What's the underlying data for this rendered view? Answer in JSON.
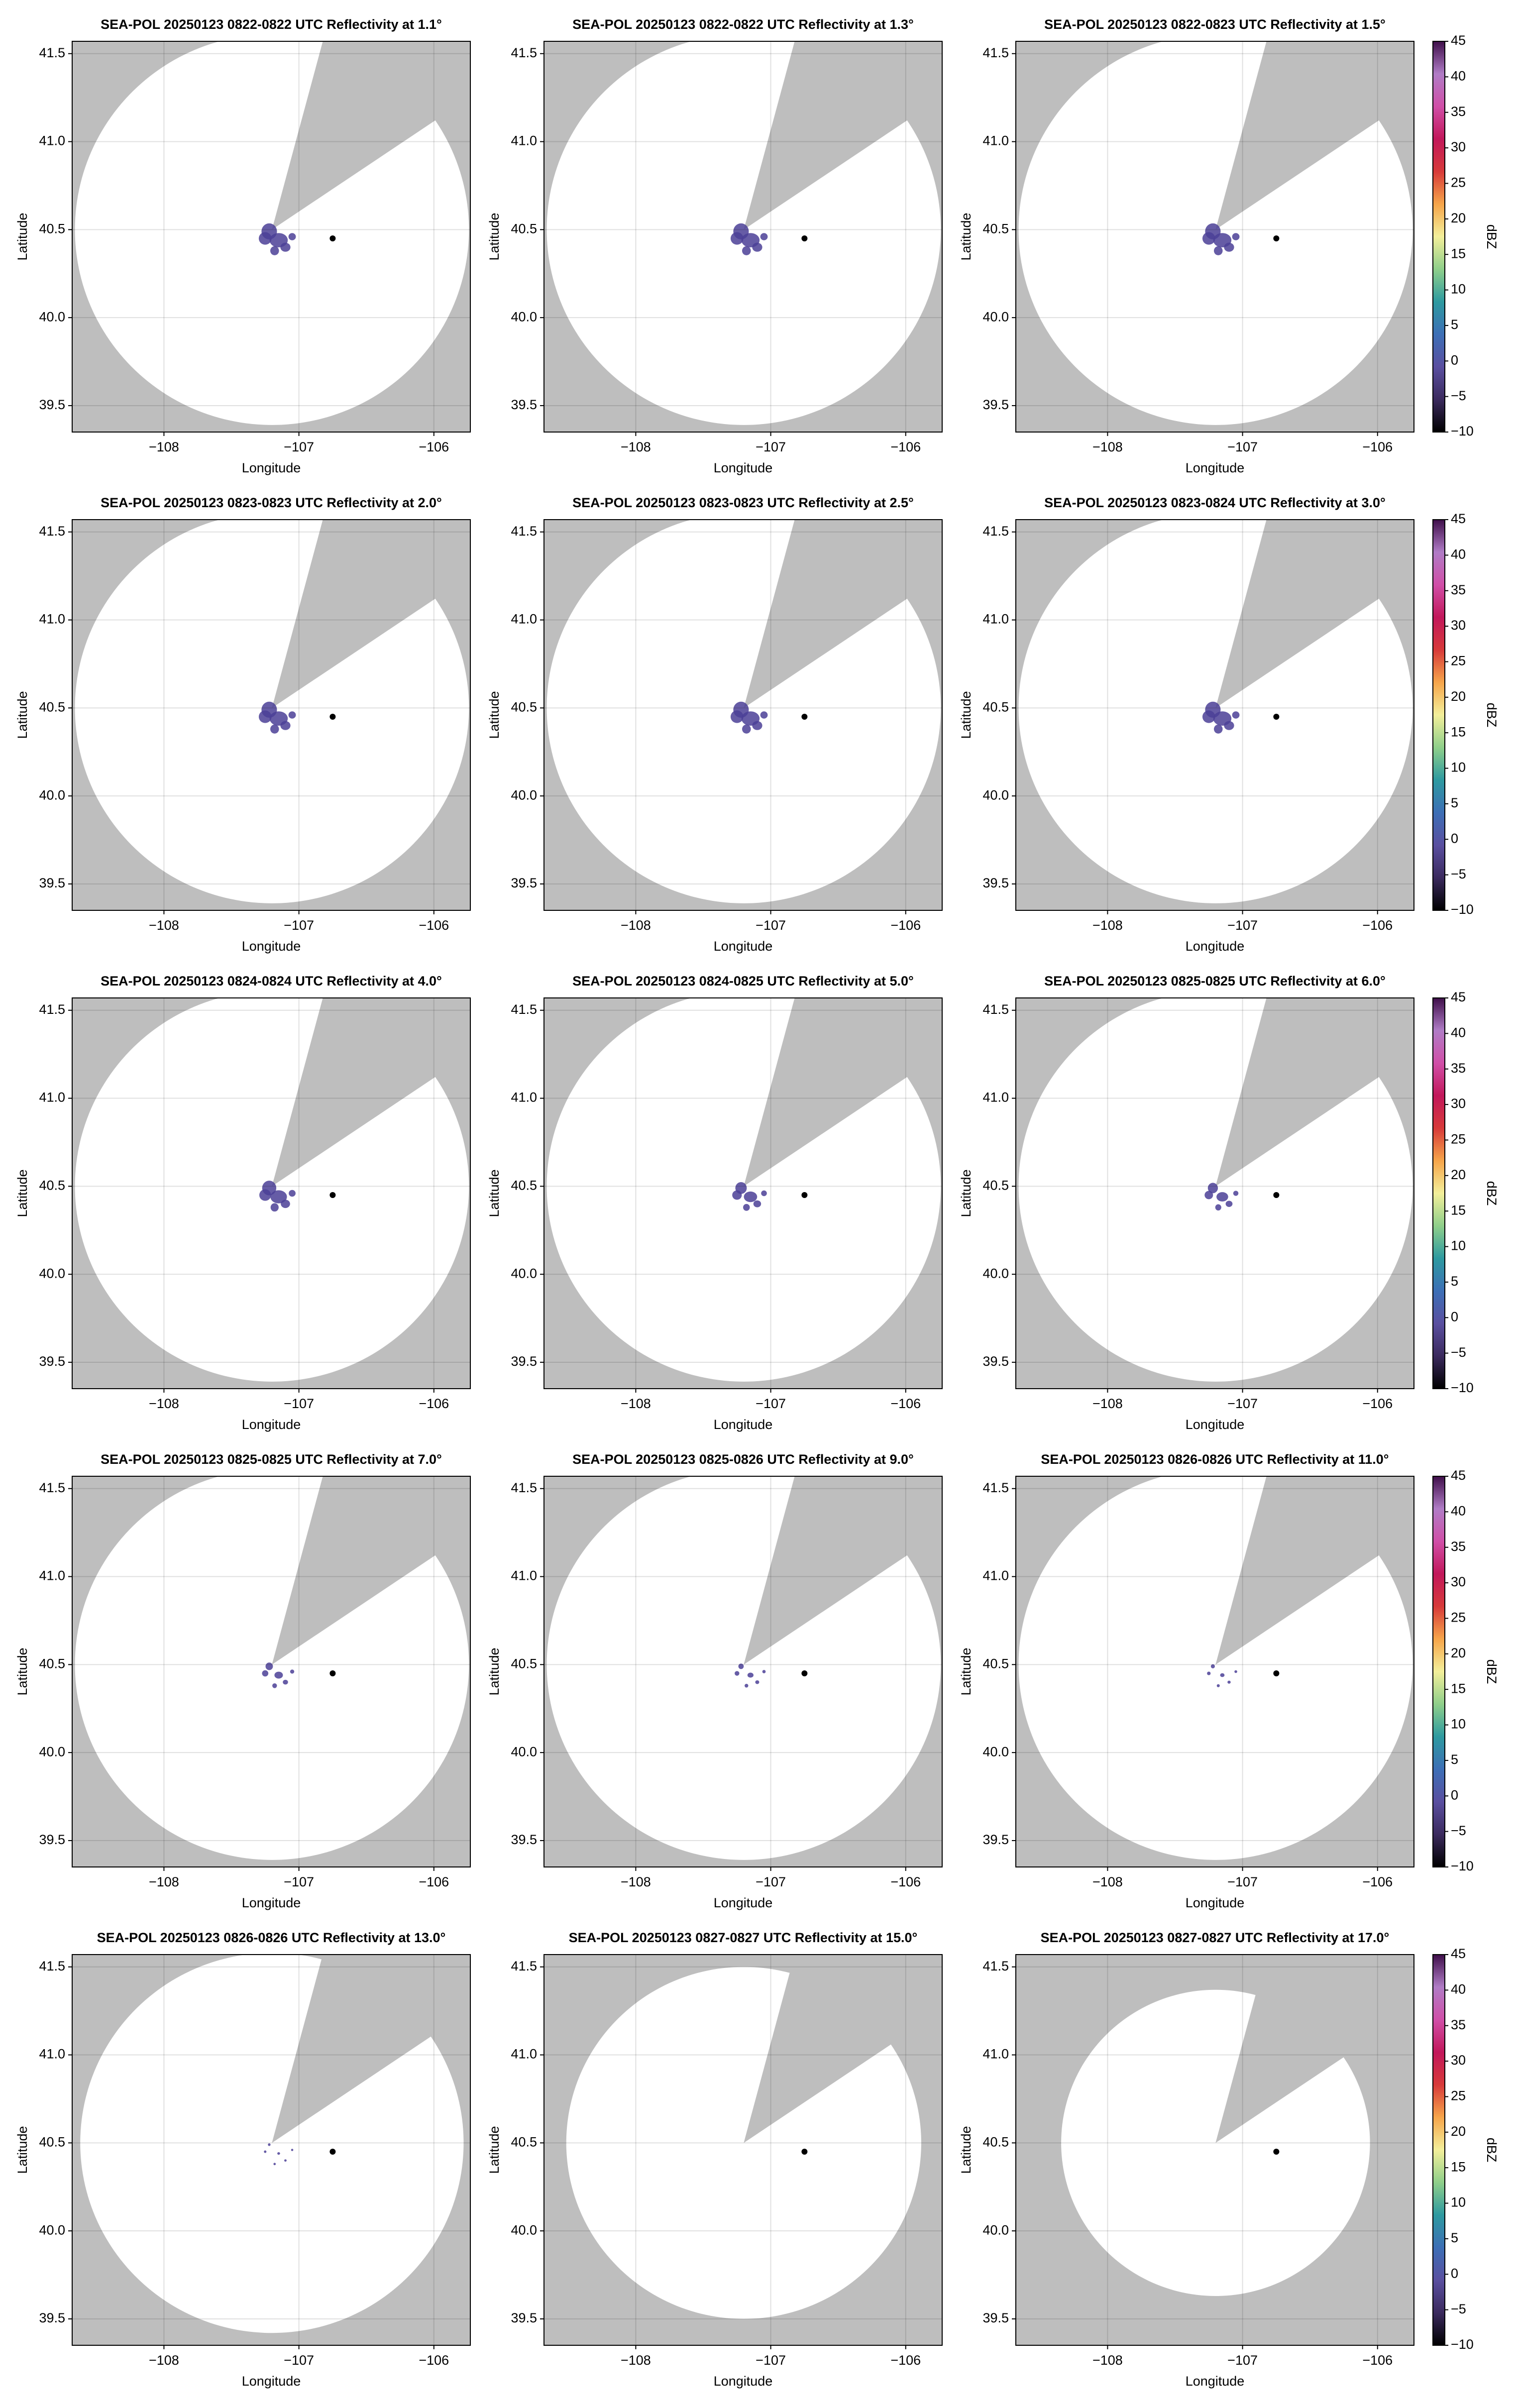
{
  "chart_data": [
    {
      "type": "map",
      "title": "SEA-POL 20250123 0822-0822 UTC Reflectivity at 1.1°",
      "xlabel": "Longitude",
      "ylabel": "Latitude",
      "xlim": [
        -108.68,
        -105.73
      ],
      "ylim": [
        39.35,
        41.57
      ],
      "xticks": [
        {
          "value": -108,
          "label": "−108"
        },
        {
          "value": -107,
          "label": "−107"
        },
        {
          "value": -106,
          "label": "−106"
        }
      ],
      "yticks": [
        39.5,
        {
          "value": 40,
          "label": "40.0"
        },
        40.5,
        {
          "value": 41,
          "label": "41.0"
        },
        41.5
      ],
      "grid": true,
      "background": "#bebebe",
      "x": [
        -106.75
      ],
      "y": [
        40.45
      ]
    },
    {
      "type": "map",
      "title": "SEA-POL 20250123 0822-0822 UTC Reflectivity at 1.3°",
      "xlabel": "Longitude",
      "ylabel": "Latitude",
      "xlim": [
        -108.68,
        -105.73
      ],
      "ylim": [
        39.35,
        41.57
      ],
      "xticks": [
        {
          "value": -108,
          "label": "−108"
        },
        {
          "value": -107,
          "label": "−107"
        },
        {
          "value": -106,
          "label": "−106"
        }
      ],
      "yticks": [
        39.5,
        {
          "value": 40,
          "label": "40.0"
        },
        40.5,
        {
          "value": 41,
          "label": "41.0"
        },
        41.5
      ],
      "grid": true,
      "background": "#bebebe",
      "x": [
        -106.75
      ],
      "y": [
        40.45
      ]
    },
    {
      "type": "map",
      "title": "SEA-POL 20250123 0822-0823 UTC Reflectivity at 1.5°",
      "xlabel": "Longitude",
      "ylabel": "Latitude",
      "xlim": [
        -108.68,
        -105.73
      ],
      "ylim": [
        39.35,
        41.57
      ],
      "xticks": [
        {
          "value": -108,
          "label": "−108"
        },
        {
          "value": -107,
          "label": "−107"
        },
        {
          "value": -106,
          "label": "−106"
        }
      ],
      "yticks": [
        39.5,
        {
          "value": 40,
          "label": "40.0"
        },
        40.5,
        {
          "value": 41,
          "label": "41.0"
        },
        41.5
      ],
      "grid": true,
      "background": "#bebebe",
      "x": [
        -106.75
      ],
      "y": [
        40.45
      ],
      "colorbar": {
        "label": "dBZ",
        "lim": [
          -10,
          45
        ],
        "ticks": [
          {
            "value": -10,
            "label": "−10"
          },
          {
            "value": -5,
            "label": "−5"
          },
          0,
          5,
          10,
          15,
          20,
          25,
          30,
          35,
          40,
          45
        ],
        "colors": [
          "#000000",
          "#3b2a5e",
          "#5a4fa0",
          "#3d6fb6",
          "#2e9aa0",
          "#8fcf8a",
          "#f3ef9a",
          "#f6a54a",
          "#d73a3a",
          "#c2185b",
          "#d04fa8",
          "#b07cc6",
          "#3f0f4a"
        ]
      }
    },
    {
      "type": "map",
      "title": "SEA-POL 20250123 0823-0823 UTC Reflectivity at 2.0°",
      "xlabel": "Longitude",
      "ylabel": "Latitude",
      "xlim": [
        -108.68,
        -105.73
      ],
      "ylim": [
        39.35,
        41.57
      ],
      "xticks": [
        {
          "value": -108,
          "label": "−108"
        },
        {
          "value": -107,
          "label": "−107"
        },
        {
          "value": -106,
          "label": "−106"
        }
      ],
      "yticks": [
        39.5,
        {
          "value": 40,
          "label": "40.0"
        },
        40.5,
        {
          "value": 41,
          "label": "41.0"
        },
        41.5
      ],
      "grid": true,
      "background": "#bebebe",
      "x": [
        -106.75
      ],
      "y": [
        40.45
      ]
    },
    {
      "type": "map",
      "title": "SEA-POL 20250123 0823-0823 UTC Reflectivity at 2.5°",
      "xlabel": "Longitude",
      "ylabel": "Latitude",
      "xlim": [
        -108.68,
        -105.73
      ],
      "ylim": [
        39.35,
        41.57
      ],
      "xticks": [
        {
          "value": -108,
          "label": "−108"
        },
        {
          "value": -107,
          "label": "−107"
        },
        {
          "value": -106,
          "label": "−106"
        }
      ],
      "yticks": [
        39.5,
        {
          "value": 40,
          "label": "40.0"
        },
        40.5,
        {
          "value": 41,
          "label": "41.0"
        },
        41.5
      ],
      "grid": true,
      "background": "#bebebe",
      "x": [
        -106.75
      ],
      "y": [
        40.45
      ]
    },
    {
      "type": "map",
      "title": "SEA-POL 20250123 0823-0824 UTC Reflectivity at 3.0°",
      "xlabel": "Longitude",
      "ylabel": "Latitude",
      "xlim": [
        -108.68,
        -105.73
      ],
      "ylim": [
        39.35,
        41.57
      ],
      "xticks": [
        {
          "value": -108,
          "label": "−108"
        },
        {
          "value": -107,
          "label": "−107"
        },
        {
          "value": -106,
          "label": "−106"
        }
      ],
      "yticks": [
        39.5,
        {
          "value": 40,
          "label": "40.0"
        },
        40.5,
        {
          "value": 41,
          "label": "41.0"
        },
        41.5
      ],
      "grid": true,
      "background": "#bebebe",
      "x": [
        -106.75
      ],
      "y": [
        40.45
      ],
      "colorbar": {
        "label": "dBZ",
        "lim": [
          -10,
          45
        ],
        "ticks": [
          {
            "value": -10,
            "label": "−10"
          },
          {
            "value": -5,
            "label": "−5"
          },
          0,
          5,
          10,
          15,
          20,
          25,
          30,
          35,
          40,
          45
        ],
        "colors": [
          "#000000",
          "#3b2a5e",
          "#5a4fa0",
          "#3d6fb6",
          "#2e9aa0",
          "#8fcf8a",
          "#f3ef9a",
          "#f6a54a",
          "#d73a3a",
          "#c2185b",
          "#d04fa8",
          "#b07cc6",
          "#3f0f4a"
        ]
      }
    },
    {
      "type": "map",
      "title": "SEA-POL 20250123 0824-0824 UTC Reflectivity at 4.0°",
      "xlabel": "Longitude",
      "ylabel": "Latitude",
      "xlim": [
        -108.68,
        -105.73
      ],
      "ylim": [
        39.35,
        41.57
      ],
      "xticks": [
        {
          "value": -108,
          "label": "−108"
        },
        {
          "value": -107,
          "label": "−107"
        },
        {
          "value": -106,
          "label": "−106"
        }
      ],
      "yticks": [
        39.5,
        {
          "value": 40,
          "label": "40.0"
        },
        40.5,
        {
          "value": 41,
          "label": "41.0"
        },
        41.5
      ],
      "grid": true,
      "background": "#bebebe",
      "x": [
        -106.75
      ],
      "y": [
        40.45
      ]
    },
    {
      "type": "map",
      "title": "SEA-POL 20250123 0824-0825 UTC Reflectivity at 5.0°",
      "xlabel": "Longitude",
      "ylabel": "Latitude",
      "xlim": [
        -108.68,
        -105.73
      ],
      "ylim": [
        39.35,
        41.57
      ],
      "xticks": [
        {
          "value": -108,
          "label": "−108"
        },
        {
          "value": -107,
          "label": "−107"
        },
        {
          "value": -106,
          "label": "−106"
        }
      ],
      "yticks": [
        39.5,
        {
          "value": 40,
          "label": "40.0"
        },
        40.5,
        {
          "value": 41,
          "label": "41.0"
        },
        41.5
      ],
      "grid": true,
      "background": "#bebebe",
      "x": [
        -106.75
      ],
      "y": [
        40.45
      ]
    },
    {
      "type": "map",
      "title": "SEA-POL 20250123 0825-0825 UTC Reflectivity at 6.0°",
      "xlabel": "Longitude",
      "ylabel": "Latitude",
      "xlim": [
        -108.68,
        -105.73
      ],
      "ylim": [
        39.35,
        41.57
      ],
      "xticks": [
        {
          "value": -108,
          "label": "−108"
        },
        {
          "value": -107,
          "label": "−107"
        },
        {
          "value": -106,
          "label": "−106"
        }
      ],
      "yticks": [
        39.5,
        {
          "value": 40,
          "label": "40.0"
        },
        40.5,
        {
          "value": 41,
          "label": "41.0"
        },
        41.5
      ],
      "grid": true,
      "background": "#bebebe",
      "x": [
        -106.75
      ],
      "y": [
        40.45
      ],
      "colorbar": {
        "label": "dBZ",
        "lim": [
          -10,
          45
        ],
        "ticks": [
          {
            "value": -10,
            "label": "−10"
          },
          {
            "value": -5,
            "label": "−5"
          },
          0,
          5,
          10,
          15,
          20,
          25,
          30,
          35,
          40,
          45
        ],
        "colors": [
          "#000000",
          "#3b2a5e",
          "#5a4fa0",
          "#3d6fb6",
          "#2e9aa0",
          "#8fcf8a",
          "#f3ef9a",
          "#f6a54a",
          "#d73a3a",
          "#c2185b",
          "#d04fa8",
          "#b07cc6",
          "#3f0f4a"
        ]
      }
    },
    {
      "type": "map",
      "title": "SEA-POL 20250123 0825-0825 UTC Reflectivity at 7.0°",
      "xlabel": "Longitude",
      "ylabel": "Latitude",
      "xlim": [
        -108.68,
        -105.73
      ],
      "ylim": [
        39.35,
        41.57
      ],
      "xticks": [
        {
          "value": -108,
          "label": "−108"
        },
        {
          "value": -107,
          "label": "−107"
        },
        {
          "value": -106,
          "label": "−106"
        }
      ],
      "yticks": [
        39.5,
        {
          "value": 40,
          "label": "40.0"
        },
        40.5,
        {
          "value": 41,
          "label": "41.0"
        },
        41.5
      ],
      "grid": true,
      "background": "#bebebe",
      "x": [
        -106.75
      ],
      "y": [
        40.45
      ]
    },
    {
      "type": "map",
      "title": "SEA-POL 20250123 0825-0826 UTC Reflectivity at 9.0°",
      "xlabel": "Longitude",
      "ylabel": "Latitude",
      "xlim": [
        -108.68,
        -105.73
      ],
      "ylim": [
        39.35,
        41.57
      ],
      "xticks": [
        {
          "value": -108,
          "label": "−108"
        },
        {
          "value": -107,
          "label": "−107"
        },
        {
          "value": -106,
          "label": "−106"
        }
      ],
      "yticks": [
        39.5,
        {
          "value": 40,
          "label": "40.0"
        },
        40.5,
        {
          "value": 41,
          "label": "41.0"
        },
        41.5
      ],
      "grid": true,
      "background": "#bebebe",
      "x": [
        -106.75
      ],
      "y": [
        40.45
      ]
    },
    {
      "type": "map",
      "title": "SEA-POL 20250123 0826-0826 UTC Reflectivity at 11.0°",
      "xlabel": "Longitude",
      "ylabel": "Latitude",
      "xlim": [
        -108.68,
        -105.73
      ],
      "ylim": [
        39.35,
        41.57
      ],
      "xticks": [
        {
          "value": -108,
          "label": "−108"
        },
        {
          "value": -107,
          "label": "−107"
        },
        {
          "value": -106,
          "label": "−106"
        }
      ],
      "yticks": [
        39.5,
        {
          "value": 40,
          "label": "40.0"
        },
        40.5,
        {
          "value": 41,
          "label": "41.0"
        },
        41.5
      ],
      "grid": true,
      "background": "#bebebe",
      "x": [
        -106.75
      ],
      "y": [
        40.45
      ],
      "colorbar": {
        "label": "dBZ",
        "lim": [
          -10,
          45
        ],
        "ticks": [
          {
            "value": -10,
            "label": "−10"
          },
          {
            "value": -5,
            "label": "−5"
          },
          0,
          5,
          10,
          15,
          20,
          25,
          30,
          35,
          40,
          45
        ],
        "colors": [
          "#000000",
          "#3b2a5e",
          "#5a4fa0",
          "#3d6fb6",
          "#2e9aa0",
          "#8fcf8a",
          "#f3ef9a",
          "#f6a54a",
          "#d73a3a",
          "#c2185b",
          "#d04fa8",
          "#b07cc6",
          "#3f0f4a"
        ]
      }
    },
    {
      "type": "map",
      "title": "SEA-POL 20250123 0826-0826 UTC Reflectivity at 13.0°",
      "xlabel": "Longitude",
      "ylabel": "Latitude",
      "xlim": [
        -108.68,
        -105.73
      ],
      "ylim": [
        39.35,
        41.57
      ],
      "xticks": [
        {
          "value": -108,
          "label": "−108"
        },
        {
          "value": -107,
          "label": "−107"
        },
        {
          "value": -106,
          "label": "−106"
        }
      ],
      "yticks": [
        39.5,
        {
          "value": 40,
          "label": "40.0"
        },
        40.5,
        {
          "value": 41,
          "label": "41.0"
        },
        41.5
      ],
      "grid": true,
      "background": "#bebebe",
      "x": [
        -106.75
      ],
      "y": [
        40.45
      ]
    },
    {
      "type": "map",
      "title": "SEA-POL 20250123 0827-0827 UTC Reflectivity at 15.0°",
      "xlabel": "Longitude",
      "ylabel": "Latitude",
      "xlim": [
        -108.68,
        -105.73
      ],
      "ylim": [
        39.35,
        41.57
      ],
      "xticks": [
        {
          "value": -108,
          "label": "−108"
        },
        {
          "value": -107,
          "label": "−107"
        },
        {
          "value": -106,
          "label": "−106"
        }
      ],
      "yticks": [
        39.5,
        {
          "value": 40,
          "label": "40.0"
        },
        40.5,
        {
          "value": 41,
          "label": "41.0"
        },
        41.5
      ],
      "grid": true,
      "background": "#bebebe",
      "x": [
        -106.75
      ],
      "y": [
        40.45
      ]
    },
    {
      "type": "map",
      "title": "SEA-POL 20250123 0827-0827 UTC Reflectivity at 17.0°",
      "xlabel": "Longitude",
      "ylabel": "Latitude",
      "xlim": [
        -108.68,
        -105.73
      ],
      "ylim": [
        39.35,
        41.57
      ],
      "xticks": [
        {
          "value": -108,
          "label": "−108"
        },
        {
          "value": -107,
          "label": "−107"
        },
        {
          "value": -106,
          "label": "−106"
        }
      ],
      "yticks": [
        39.5,
        {
          "value": 40,
          "label": "40.0"
        },
        40.5,
        {
          "value": 41,
          "label": "41.0"
        },
        41.5
      ],
      "grid": true,
      "background": "#bebebe",
      "x": [
        -106.75
      ],
      "y": [
        40.45
      ],
      "colorbar": {
        "label": "dBZ",
        "lim": [
          -10,
          45
        ],
        "ticks": [
          {
            "value": -10,
            "label": "−10"
          },
          {
            "value": -5,
            "label": "−5"
          },
          0,
          5,
          10,
          15,
          20,
          25,
          30,
          35,
          40,
          45
        ],
        "colors": [
          "#000000",
          "#3b2a5e",
          "#5a4fa0",
          "#3d6fb6",
          "#2e9aa0",
          "#8fcf8a",
          "#f3ef9a",
          "#f6a54a",
          "#d73a3a",
          "#c2185b",
          "#d04fa8",
          "#b07cc6",
          "#3f0f4a"
        ]
      }
    }
  ]
}
